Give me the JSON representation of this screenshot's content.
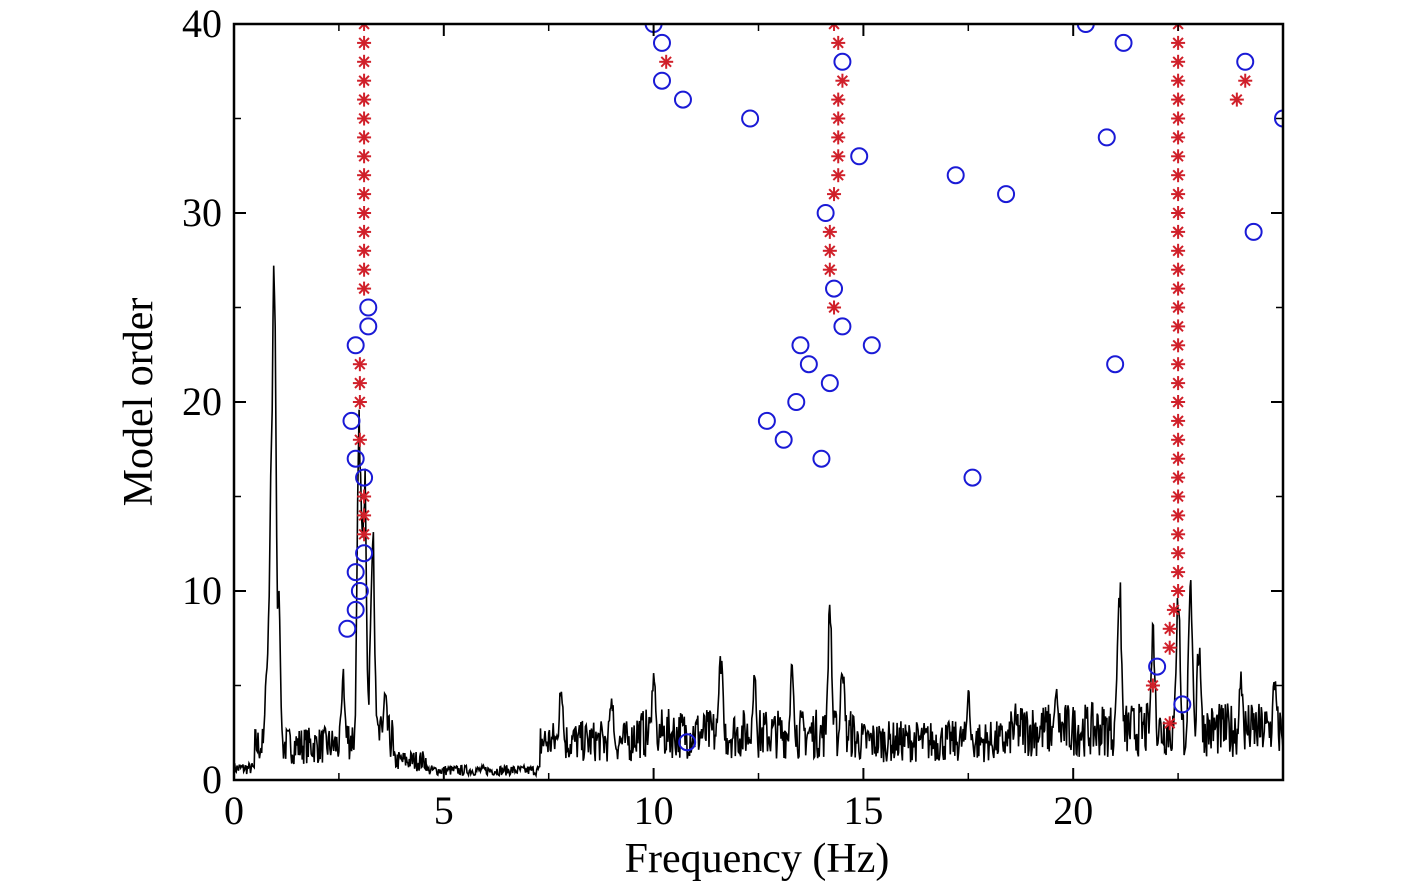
{
  "chart_data": {
    "type": "scatter",
    "title": "",
    "xlabel": "Frequency (Hz)",
    "ylabel": "Model order",
    "xlim": [
      0,
      25
    ],
    "ylim": [
      0,
      40
    ],
    "x_ticks": [
      "0",
      "5",
      "10",
      "15",
      "20"
    ],
    "y_ticks": [
      "0",
      "10",
      "20",
      "30",
      "40"
    ],
    "grid": false,
    "legend": "none",
    "colors": {
      "stable": "#d0202a",
      "unstable": "#1a1ad6",
      "spectrum": "#000000"
    },
    "series": [
      {
        "marker": "asterisk",
        "points": [
          [
            3.1,
            26
          ],
          [
            3.1,
            27
          ],
          [
            3.1,
            28
          ],
          [
            3.1,
            29
          ],
          [
            3.1,
            30
          ],
          [
            3.1,
            31
          ],
          [
            3.1,
            32
          ],
          [
            3.1,
            33
          ],
          [
            3.1,
            34
          ],
          [
            3.1,
            35
          ],
          [
            3.1,
            36
          ],
          [
            3.1,
            37
          ],
          [
            3.1,
            38
          ],
          [
            3.1,
            39
          ],
          [
            3.1,
            40
          ],
          [
            3.0,
            22
          ],
          [
            3.0,
            21
          ],
          [
            3.0,
            20
          ],
          [
            3.0,
            18
          ],
          [
            3.1,
            15
          ],
          [
            3.1,
            14
          ],
          [
            3.1,
            13
          ],
          [
            14.3,
            40
          ],
          [
            14.4,
            39
          ],
          [
            14.5,
            37
          ],
          [
            14.4,
            36
          ],
          [
            14.4,
            35
          ],
          [
            14.4,
            34
          ],
          [
            14.4,
            33
          ],
          [
            14.4,
            32
          ],
          [
            14.3,
            31
          ],
          [
            14.2,
            29
          ],
          [
            14.2,
            28
          ],
          [
            14.2,
            27
          ],
          [
            14.3,
            25
          ],
          [
            10.3,
            38
          ],
          [
            22.5,
            40
          ],
          [
            22.5,
            39
          ],
          [
            22.5,
            38
          ],
          [
            22.5,
            37
          ],
          [
            22.5,
            36
          ],
          [
            22.5,
            35
          ],
          [
            22.5,
            34
          ],
          [
            22.5,
            33
          ],
          [
            22.5,
            32
          ],
          [
            22.5,
            31
          ],
          [
            22.5,
            30
          ],
          [
            22.5,
            29
          ],
          [
            22.5,
            28
          ],
          [
            22.5,
            27
          ],
          [
            22.5,
            26
          ],
          [
            22.5,
            25
          ],
          [
            22.5,
            24
          ],
          [
            22.5,
            23
          ],
          [
            22.5,
            22
          ],
          [
            22.5,
            21
          ],
          [
            22.5,
            20
          ],
          [
            22.5,
            19
          ],
          [
            22.5,
            18
          ],
          [
            22.5,
            17
          ],
          [
            22.5,
            16
          ],
          [
            22.5,
            15
          ],
          [
            22.5,
            14
          ],
          [
            22.5,
            13
          ],
          [
            22.5,
            12
          ],
          [
            22.5,
            11
          ],
          [
            22.5,
            10
          ],
          [
            22.4,
            9
          ],
          [
            22.3,
            8
          ],
          [
            22.3,
            7
          ],
          [
            21.9,
            5
          ],
          [
            22.3,
            3
          ],
          [
            24.1,
            37
          ],
          [
            23.9,
            36
          ]
        ]
      },
      {
        "marker": "circle",
        "points": [
          [
            10.0,
            40
          ],
          [
            10.2,
            39
          ],
          [
            10.2,
            37
          ],
          [
            10.7,
            36
          ],
          [
            12.3,
            35
          ],
          [
            14.5,
            38
          ],
          [
            14.9,
            33
          ],
          [
            14.1,
            30
          ],
          [
            14.3,
            26
          ],
          [
            14.5,
            24
          ],
          [
            15.2,
            23
          ],
          [
            13.5,
            23
          ],
          [
            13.7,
            22
          ],
          [
            14.2,
            21
          ],
          [
            13.4,
            20
          ],
          [
            12.7,
            19
          ],
          [
            13.1,
            18
          ],
          [
            14.0,
            17
          ],
          [
            17.2,
            32
          ],
          [
            18.4,
            31
          ],
          [
            17.6,
            16
          ],
          [
            20.3,
            40
          ],
          [
            21.2,
            39
          ],
          [
            20.8,
            34
          ],
          [
            21.0,
            22
          ],
          [
            24.1,
            38
          ],
          [
            25.0,
            35
          ],
          [
            24.3,
            29
          ],
          [
            22.0,
            6
          ],
          [
            22.6,
            4
          ],
          [
            10.8,
            2
          ],
          [
            3.2,
            25
          ],
          [
            3.2,
            24
          ],
          [
            2.9,
            23
          ],
          [
            2.8,
            19
          ],
          [
            2.9,
            17
          ],
          [
            3.1,
            16
          ],
          [
            3.1,
            12
          ],
          [
            2.9,
            11
          ],
          [
            3.0,
            10
          ],
          [
            2.9,
            9
          ],
          [
            2.7,
            8
          ]
        ]
      }
    ],
    "spectrum_peaks": [
      [
        0.95,
        30
      ],
      [
        0.9,
        20.5
      ],
      [
        1.05,
        11
      ],
      [
        0.8,
        8
      ],
      [
        3.0,
        22
      ],
      [
        3.1,
        18
      ],
      [
        3.3,
        14
      ],
      [
        2.6,
        6
      ],
      [
        3.6,
        5
      ],
      [
        7.8,
        5.5
      ],
      [
        9.0,
        5
      ],
      [
        10.0,
        6
      ],
      [
        11.6,
        7.5
      ],
      [
        12.4,
        6
      ],
      [
        13.3,
        6.5
      ],
      [
        14.2,
        9.5
      ],
      [
        14.5,
        7
      ],
      [
        17.5,
        5
      ],
      [
        19.6,
        5
      ],
      [
        21.1,
        11.5
      ],
      [
        21.9,
        9
      ],
      [
        22.5,
        10.5
      ],
      [
        22.8,
        11
      ],
      [
        23.0,
        8
      ],
      [
        24.0,
        6
      ],
      [
        24.8,
        6
      ]
    ]
  }
}
